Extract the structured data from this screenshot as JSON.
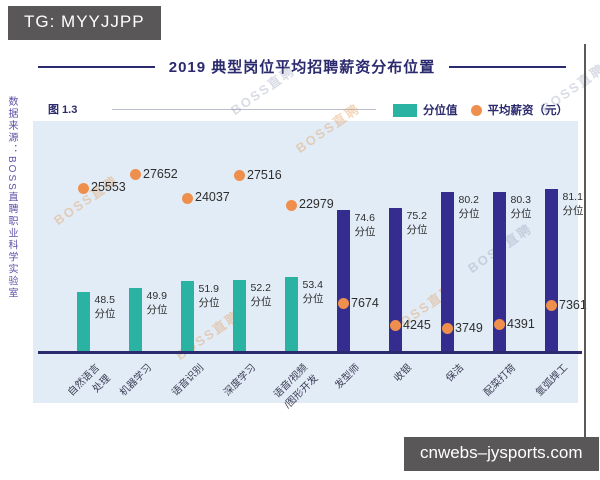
{
  "overlay": {
    "tg_banner": "TG: MYYJJPP",
    "site_banner": "cnwebs–jysports.com"
  },
  "title": "2019 典型岗位平均招聘薪资分布位置",
  "figure_label": "图 1.3",
  "source_watermark": "数据来源：BOSS直聘职业科学实验室",
  "brand_watermark": "BOSS直聘",
  "legend": [
    {
      "label": "分位值",
      "color": "#2AB2A2",
      "shape": "square"
    },
    {
      "label": "平均薪资（元）",
      "color": "#EE8F4D",
      "shape": "circle"
    }
  ],
  "colors": {
    "teal_bar": "#2AB2A2",
    "navy_bar": "#342D8F",
    "orange_dot": "#EE8F4D",
    "plot_bg": "#E2ECF6",
    "axis": "#2B2A6E",
    "banner_bg": "#595757",
    "title_text": "#2B2A6E",
    "value_text": "#2E2E2E",
    "category_text": "#3C3C55",
    "source_text": "#4A3E9E"
  },
  "chart_data": {
    "type": "bar",
    "title": "2019 典型岗位平均招聘薪资分布位置",
    "categories": [
      "自然语言\n处理",
      "机器学习",
      "语音识别",
      "深度学习",
      "语音/视频\n/图形开发",
      "发型师",
      "收银",
      "保洁",
      "配菜打荷",
      "氩弧焊工"
    ],
    "series": [
      {
        "name": "分位值",
        "values": [
          48.5,
          49.9,
          51.9,
          52.2,
          53.4,
          74.6,
          75.2,
          80.2,
          80.3,
          81.1
        ],
        "unit": "分位"
      },
      {
        "name": "平均薪资（元）",
        "values": [
          25553,
          27652,
          24037,
          27516,
          22979,
          7674,
          4245,
          3749,
          4391,
          7361
        ]
      }
    ],
    "percentile_suffix": "分位",
    "bar_group": [
      "teal",
      "teal",
      "teal",
      "teal",
      "teal",
      "navy",
      "navy",
      "navy",
      "navy",
      "navy"
    ],
    "legend_position": "top-right",
    "grid": false
  }
}
